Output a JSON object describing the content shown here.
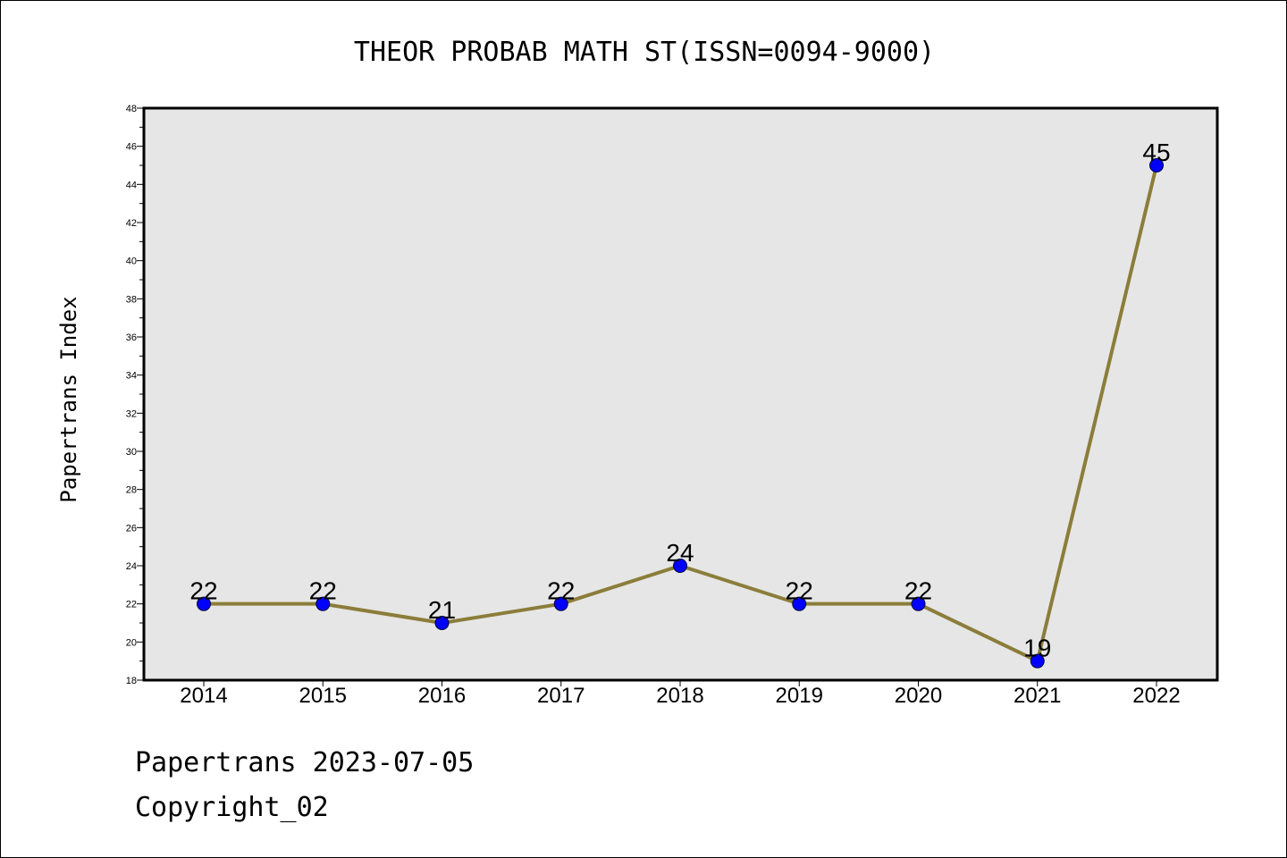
{
  "chart_data": {
    "type": "line",
    "title": "THEOR PROBAB MATH ST(ISSN=0094-9000)",
    "xlabel": "",
    "ylabel": "Papertrans Index",
    "categories": [
      "2014",
      "2015",
      "2016",
      "2017",
      "2018",
      "2019",
      "2020",
      "2021",
      "2022"
    ],
    "series": [
      {
        "values": [
          22,
          22,
          21,
          22,
          24,
          22,
          22,
          19,
          45
        ]
      }
    ],
    "data_labels": [
      "22",
      "22",
      "21",
      "22",
      "24",
      "22",
      "22",
      "19",
      "45"
    ],
    "ylim": [
      18,
      48
    ],
    "yticks": [
      "18",
      "20",
      "22",
      "24",
      "26",
      "28",
      "30",
      "32",
      "34",
      "36",
      "38",
      "40",
      "42",
      "44",
      "46",
      "48"
    ],
    "grid": false,
    "legend": "none",
    "colors": {
      "line": "#8B7D3A",
      "marker": "#0000FF",
      "plot_background": "#E6E6E6"
    }
  },
  "footer": {
    "line1": "Papertrans 2023-07-05",
    "line2": "Copyright_02"
  }
}
